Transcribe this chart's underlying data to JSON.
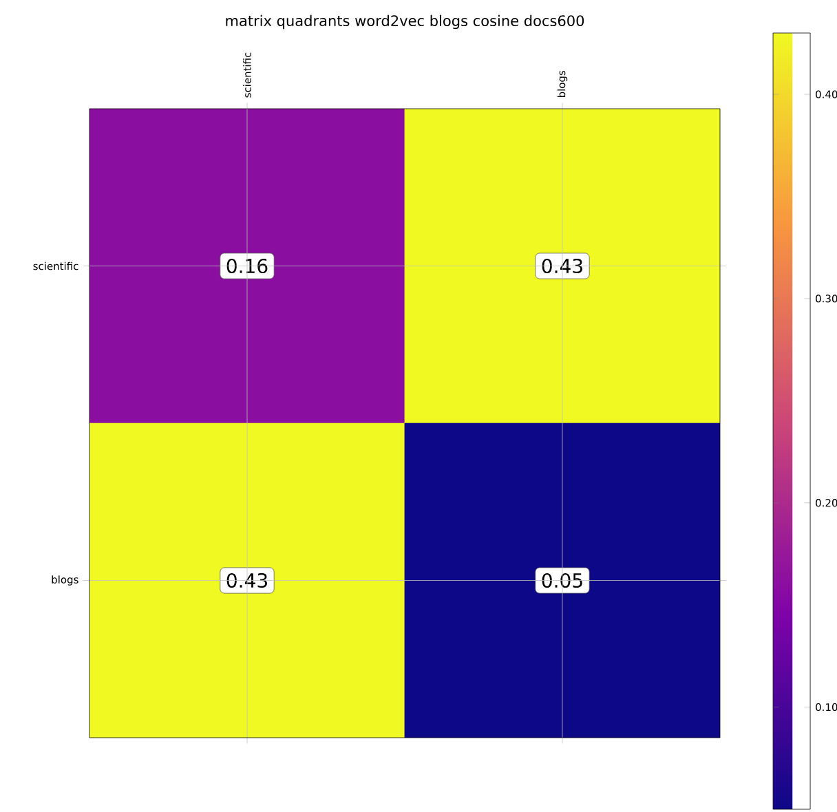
{
  "chart_data": {
    "type": "heatmap",
    "title": "matrix quadrants word2vec blogs cosine docs600",
    "categories": [
      "scientific",
      "blogs"
    ],
    "y_categories": [
      "scientific",
      "blogs"
    ],
    "cells": [
      [
        0.16,
        0.43
      ],
      [
        0.43,
        0.05
      ]
    ],
    "clim": [
      0.05,
      0.43
    ],
    "cticks": [
      {
        "value": 0.1,
        "label": "0.10"
      },
      {
        "value": 0.2,
        "label": "0.20"
      },
      {
        "value": 0.3,
        "label": "0.30"
      },
      {
        "value": 0.4,
        "label": "0.40"
      }
    ],
    "data_labels": true,
    "grid": true
  }
}
